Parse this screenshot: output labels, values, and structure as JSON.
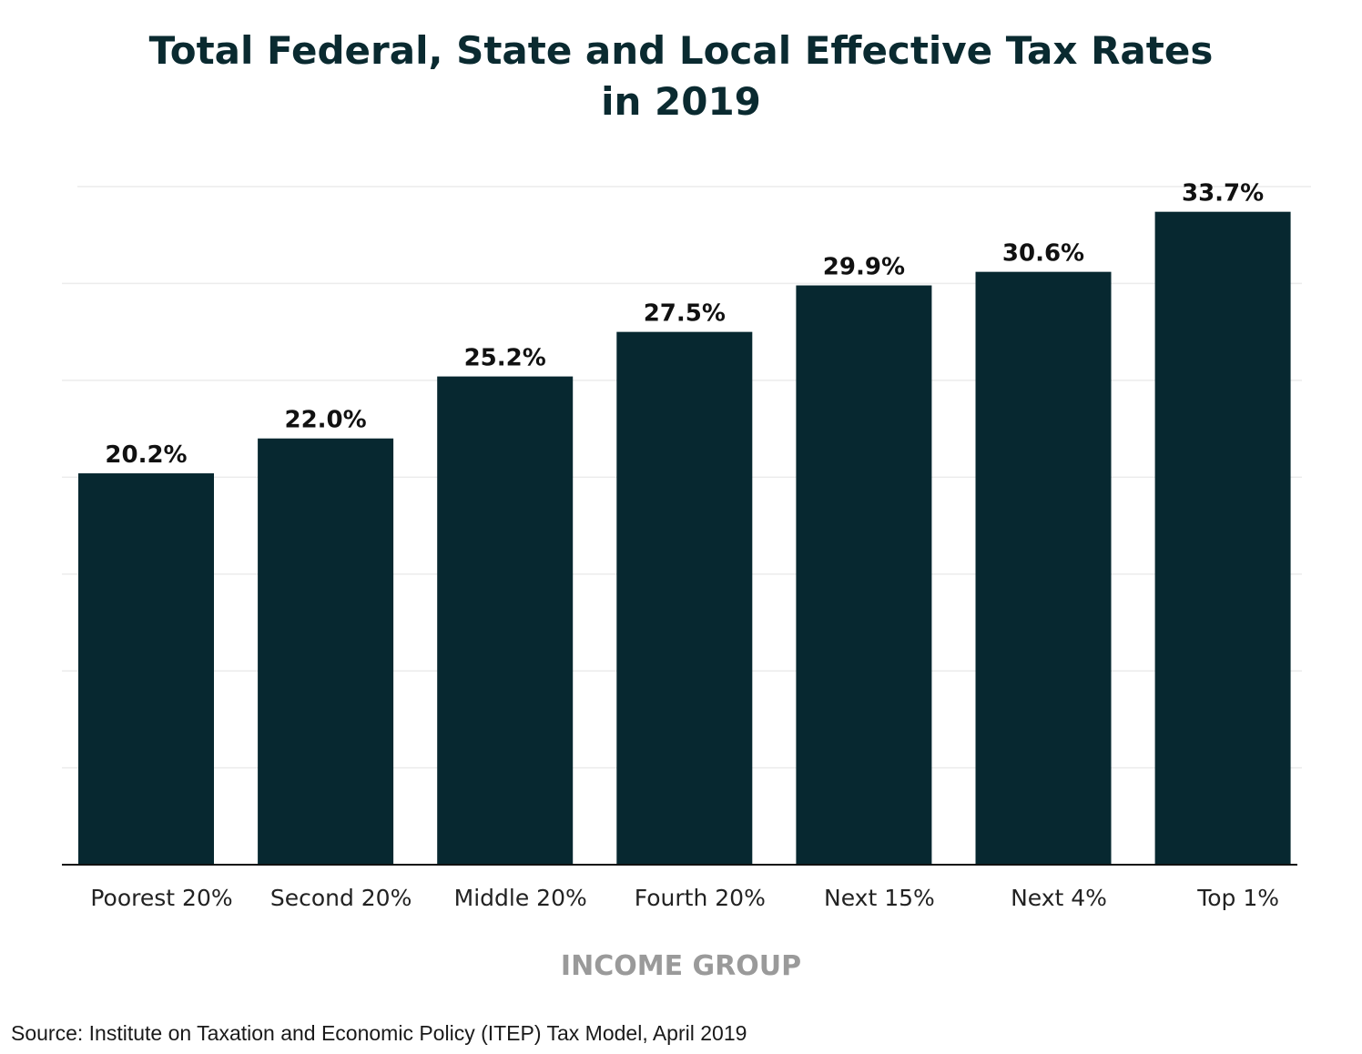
{
  "chart_data": {
    "type": "bar",
    "title_line1": "Total Federal, State and Local Effective Tax Rates",
    "title_line2": "in 2019",
    "categories": [
      "Poorest 20%",
      "Second 20%",
      "Middle 20%",
      "Fourth 20%",
      "Next 15%",
      "Next 4%",
      "Top 1%"
    ],
    "values": [
      20.2,
      22.0,
      25.2,
      27.5,
      29.9,
      30.6,
      33.7
    ],
    "data_labels": [
      "20.2%",
      "22.0%",
      "25.2%",
      "27.5%",
      "29.9%",
      "30.6%",
      "33.7%"
    ],
    "xlabel": "INCOME GROUP",
    "ylabel": "",
    "ylim": [
      0,
      35
    ],
    "grid": true,
    "bar_color": "#072830"
  },
  "source": "Source: Institute on Taxation and Economic Policy (ITEP) Tax Model, April 2019"
}
